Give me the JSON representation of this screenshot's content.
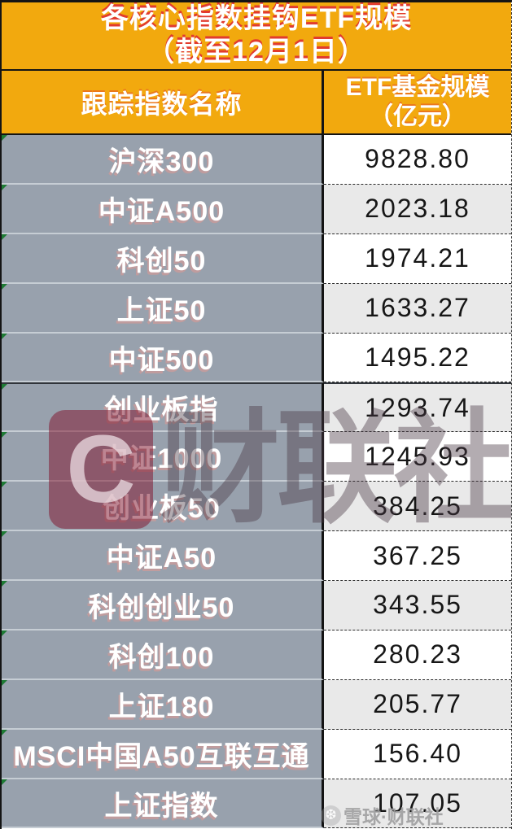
{
  "title": {
    "line1": "各核心指数挂钩ETF规模",
    "line2": "（截至12月1日）"
  },
  "header": {
    "index_column": "跟踪指数名称",
    "scale_column_line1": "ETF基金规模",
    "scale_column_line2": "（亿元）"
  },
  "table": {
    "rows": [
      {
        "name": "沪深300",
        "value": "9828.80"
      },
      {
        "name": "中证A500",
        "value": "2023.18"
      },
      {
        "name": "科创50",
        "value": "1974.21"
      },
      {
        "name": "上证50",
        "value": "1633.27"
      },
      {
        "name": "中证500",
        "value": "1495.22"
      },
      {
        "name": "创业板指",
        "value": "1293.74"
      },
      {
        "name": "中证1000",
        "value": "1245.93"
      },
      {
        "name": "创业板50",
        "value": "384.25"
      },
      {
        "name": "中证A50",
        "value": "367.25"
      },
      {
        "name": "科创创业50",
        "value": "343.55"
      },
      {
        "name": "科创100",
        "value": "280.23"
      },
      {
        "name": "上证180",
        "value": "205.77"
      },
      {
        "name": "MSCI中国A50互联互通",
        "value": "156.40"
      },
      {
        "name": "上证指数",
        "value": "107.05"
      }
    ]
  },
  "watermarks": {
    "center_logo_letter": "C",
    "center_text": "财联社",
    "corner_icon_glyph": "❆",
    "corner_text": "雪球·财联社"
  },
  "colors": {
    "header_orange": "#F2A90E",
    "title_shadow_red": "#E23B2E",
    "label_cell_gray_blue": "#98A1AD",
    "value_alt_gray": "#E9E9E9",
    "comment_triangle_green": "#1E7A34",
    "border_black": "#141414"
  },
  "chart_data": {
    "type": "table",
    "title": "各核心指数挂钩ETF规模（截至12月1日）",
    "columns": [
      "跟踪指数名称",
      "ETF基金规模（亿元）"
    ],
    "rows": [
      [
        "沪深300",
        9828.8
      ],
      [
        "中证A500",
        2023.18
      ],
      [
        "科创50",
        1974.21
      ],
      [
        "上证50",
        1633.27
      ],
      [
        "中证500",
        1495.22
      ],
      [
        "创业板指",
        1293.74
      ],
      [
        "中证1000",
        1245.93
      ],
      [
        "创业板50",
        384.25
      ],
      [
        "中证A50",
        367.25
      ],
      [
        "科创创业50",
        343.55
      ],
      [
        "科创100",
        280.23
      ],
      [
        "上证180",
        205.77
      ],
      [
        "MSCI中国A50互联互通",
        156.4
      ],
      [
        "上证指数",
        107.05
      ]
    ]
  }
}
